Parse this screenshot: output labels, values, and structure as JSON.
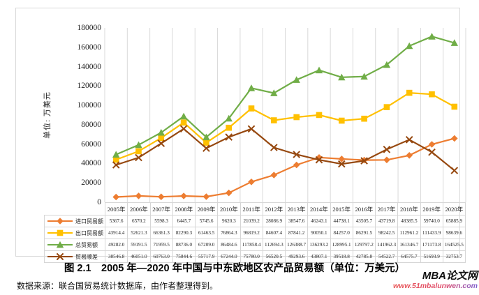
{
  "chart": {
    "y_axis_title": "单位: 万美元",
    "yticks": [
      "180000",
      "160000",
      "140000",
      "120000",
      "100000",
      "80000",
      "60000",
      "40000",
      "20000",
      "0"
    ]
  },
  "chart_data": {
    "type": "line",
    "title": "2005 年—2020 年中国与中东欧地区农产品贸易额",
    "ylabel": "单位: 万美元",
    "ylim": [
      0,
      180000
    ],
    "ytick_step": 20000,
    "grid": "vertical-only",
    "legend_position": "table-left",
    "categories": [
      "2005年",
      "2006年",
      "2007年",
      "2008年",
      "2009年",
      "2010年",
      "2011年",
      "2012年",
      "2013年",
      "2014年",
      "2015年",
      "2016年",
      "2017年",
      "2018年",
      "2019年",
      "2020年"
    ],
    "series": [
      {
        "key": "import",
        "name": "进口贸易额",
        "color": "#ED7D31",
        "marker": "diamond",
        "values": [
          5367.6,
          6570.2,
          5598.3,
          6445.7,
          5745.6,
          9620.3,
          21039.2,
          28086.9,
          38547.6,
          46243.1,
          44738.1,
          43505.7,
          43719.8,
          48385.5,
          59740.0,
          65885.9
        ]
      },
      {
        "key": "export",
        "name": "出口贸易额",
        "color": "#FFC000",
        "marker": "square",
        "values": [
          43914.4,
          52621.3,
          66361.3,
          82290.3,
          61463.5,
          76864.3,
          96819.2,
          84607.4,
          87841.2,
          90050.1,
          84257.0,
          86291.5,
          98242.5,
          112961.2,
          111433.9,
          98639.6
        ]
      },
      {
        "key": "total",
        "name": "总贸易额",
        "color": "#70AD47",
        "marker": "triangle",
        "values": [
          49282.0,
          59191.5,
          71959.5,
          88736.0,
          67209.0,
          86484.6,
          117858.4,
          112694.3,
          126388.7,
          136293.2,
          128995.1,
          129797.2,
          141962.3,
          161346.7,
          171173.8,
          164525.5
        ]
      },
      {
        "key": "surplus",
        "name": "贸易顺差",
        "color": "#96480F",
        "marker": "x",
        "values": [
          38546.8,
          46051.0,
          60763.0,
          75844.6,
          55717.9,
          67244.0,
          75780.0,
          56520.5,
          49293.6,
          43807.1,
          39518.8,
          42785.8,
          54522.7,
          64575.7,
          51693.9,
          32753.7
        ]
      }
    ]
  },
  "caption": "图 2.1　2005 年—2020 年中国与中东欧地区农产品贸易额（单位：万美元）",
  "source": "数据来源：联合国贸易统计数据库，由作者整理得到。",
  "watermark": {
    "title": "MBA论文网",
    "url": "www.51mbalunwen.com",
    "title_color": "#111111",
    "url_color_start": "#e85555",
    "url_color_end": "#7d5fd0"
  },
  "colors": {
    "grid": "#d9d9d9",
    "frame": "#d9d9d9",
    "table_border": "#d6d6d6"
  }
}
